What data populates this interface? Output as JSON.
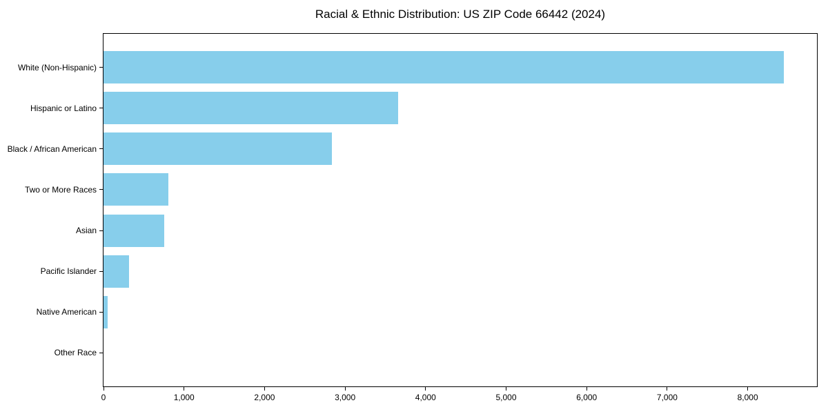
{
  "chart_data": {
    "type": "bar",
    "orientation": "horizontal",
    "title": "Racial & Ethnic Distribution: US ZIP Code 66442 (2024)",
    "categories": [
      "White (Non-Hispanic)",
      "Hispanic or Latino",
      "Black / African American",
      "Two or More Races",
      "Asian",
      "Pacific Islander",
      "Native American",
      "Other Race"
    ],
    "values": [
      8450,
      3660,
      2840,
      805,
      755,
      320,
      50,
      0
    ],
    "xlabel": "",
    "ylabel": "",
    "xlim": [
      0,
      8860
    ],
    "xticks": [
      0,
      1000,
      2000,
      3000,
      4000,
      5000,
      6000,
      7000,
      8000
    ],
    "xtick_labels": [
      "0",
      "1,000",
      "2,000",
      "3,000",
      "4,000",
      "5,000",
      "6,000",
      "7,000",
      "8,000"
    ],
    "bar_color": "#87CEEB",
    "frame_color": "#000000",
    "background_color": "#ffffff",
    "grid": false,
    "legend": null,
    "value_labels_shown": false
  }
}
